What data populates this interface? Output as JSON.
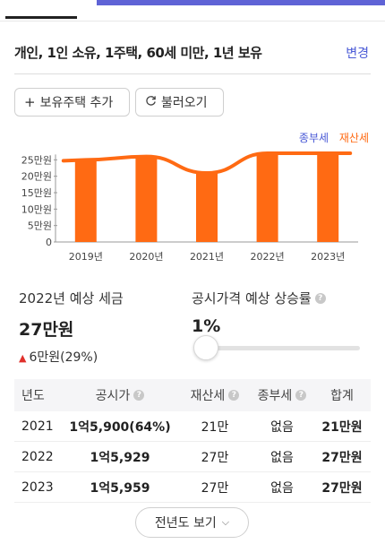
{
  "summary": {
    "text": "개인, 1인 소유, 1주택, 60세 미만, 1년 보유",
    "change_label": "변경"
  },
  "buttons": {
    "add": "보유주택 추가",
    "load": "불러오기",
    "more": "전년도 보기"
  },
  "icons": {
    "add": "plus-icon",
    "load": "refresh-icon",
    "more": "chevron-down-icon",
    "help": "question-icon",
    "up": "triangle-up-icon"
  },
  "legend": {
    "a": "종부세",
    "b": "재산세"
  },
  "colors": {
    "accent": "#4a5ad6",
    "orange": "#ff6a13",
    "up": "#e0302b"
  },
  "chart_data": {
    "type": "bar",
    "categories": [
      "2019년",
      "2020년",
      "2021년",
      "2022년",
      "2023년"
    ],
    "series": [
      {
        "name": "재산세",
        "values": [
          25,
          26,
          21,
          27,
          27
        ]
      },
      {
        "name": "종부세",
        "values": [
          0,
          0,
          0,
          0,
          0
        ]
      }
    ],
    "y_ticks": [
      "0",
      "5만원",
      "10만원",
      "15만원",
      "20만원",
      "25만원"
    ],
    "y_tick_values": [
      0,
      5,
      10,
      15,
      20,
      25
    ],
    "ylim": [
      0,
      30
    ],
    "trend_line": true
  },
  "forecast": {
    "label": "2022년 예상 세금",
    "value": "27만원",
    "delta": "6만원(29%)"
  },
  "rate": {
    "label": "공시가격 예상 상승률",
    "value": "1%",
    "slider_level": 0
  },
  "table": {
    "headers": [
      "년도",
      "공시가",
      "재산세",
      "종부세",
      "합계"
    ],
    "rows": [
      {
        "year": "2021",
        "price": "1억5,900(64%)",
        "prop": "21만",
        "comp": "없음",
        "total": "21만원"
      },
      {
        "year": "2022",
        "price": "1억5,929",
        "prop": "27만",
        "comp": "없음",
        "total": "27만원"
      },
      {
        "year": "2023",
        "price": "1억5,959",
        "prop": "27만",
        "comp": "없음",
        "total": "27만원"
      }
    ]
  }
}
